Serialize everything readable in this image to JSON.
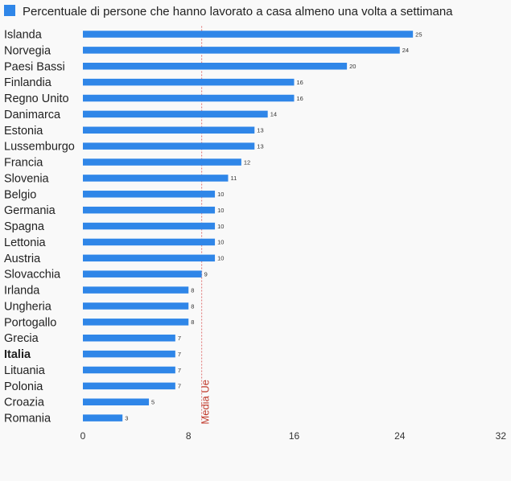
{
  "chart_data": {
    "type": "bar",
    "orientation": "horizontal",
    "title": "",
    "series": [
      {
        "name": "Percentuale di persone che hanno lavorato a casa almeno una volta a settimana",
        "color": "#2f86e8",
        "values": [
          25,
          24,
          20,
          16,
          16,
          14,
          13,
          13,
          12,
          11,
          10,
          10,
          10,
          10,
          10,
          9,
          8,
          8,
          8,
          7,
          7,
          7,
          7,
          5,
          3
        ]
      }
    ],
    "categories": [
      "Islanda",
      "Norvegia",
      "Paesi Bassi",
      "Finlandia",
      "Regno Unito",
      "Danimarca",
      "Estonia",
      "Lussemburgo",
      "Francia",
      "Slovenia",
      "Belgio",
      "Germania",
      "Spagna",
      "Lettonia",
      "Austria",
      "Slovacchia",
      "Irlanda",
      "Ungheria",
      "Portogallo",
      "Grecia",
      "Italia",
      "Lituania",
      "Polonia",
      "Croazia",
      "Romania"
    ],
    "highlighted_category": "Italia",
    "xlim": [
      0,
      32
    ],
    "xticks": [
      0,
      8,
      16,
      24,
      32
    ],
    "reference_line": {
      "label": "Media Ue",
      "value": 9,
      "color": "#e07070"
    },
    "legend_position": "top-left",
    "grid": false
  }
}
